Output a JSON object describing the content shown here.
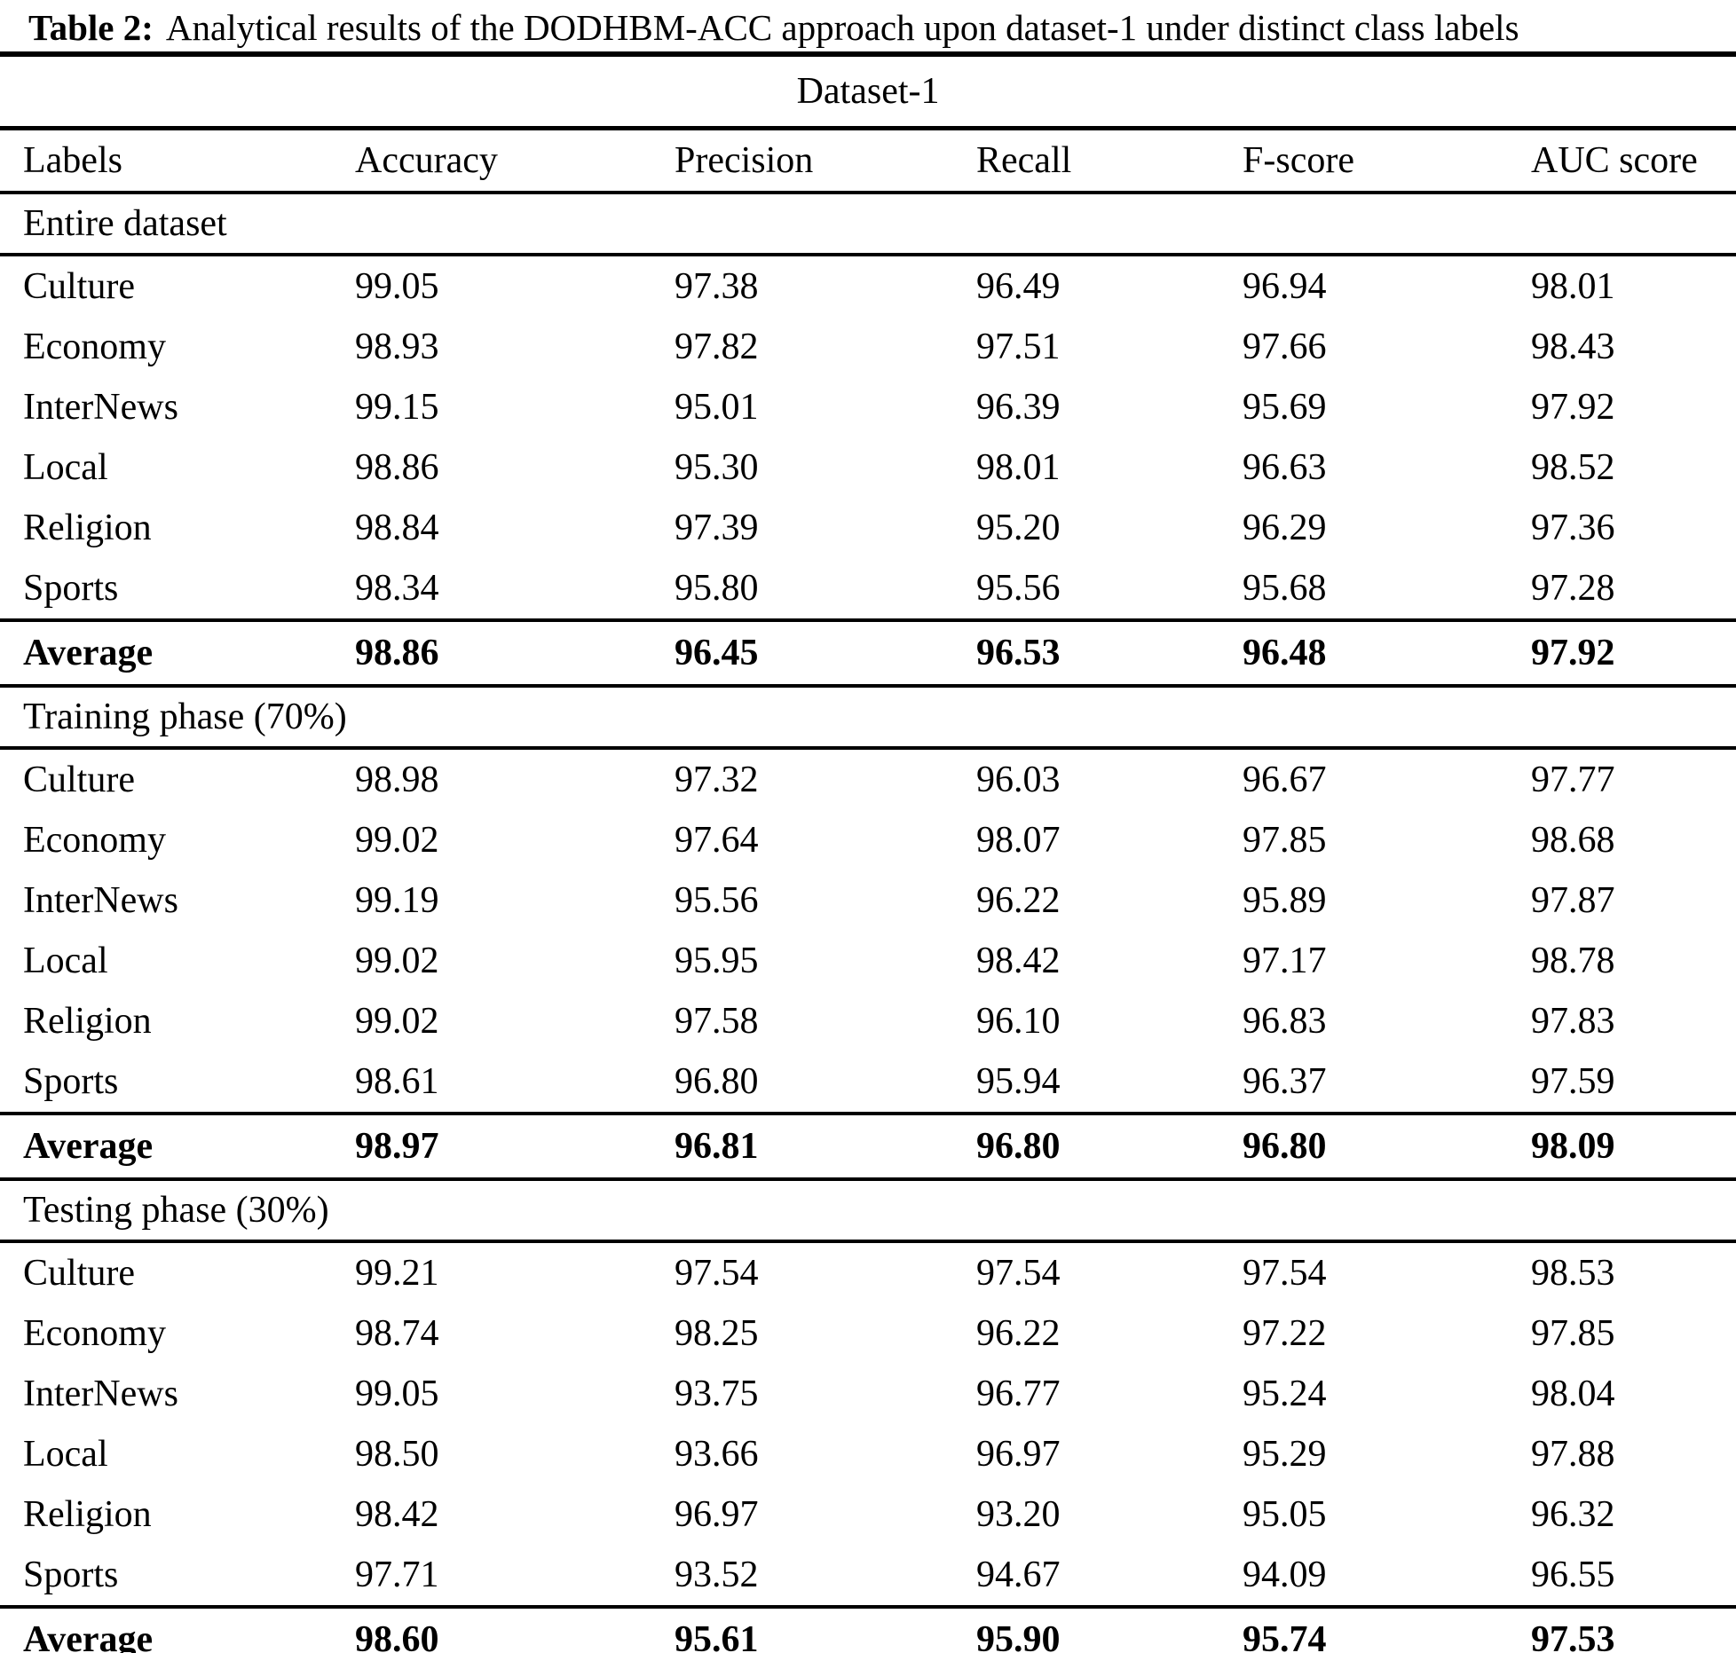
{
  "title": {
    "label": "Table 2:",
    "text": "Analytical results of the DODHBM-ACC approach upon dataset-1 under distinct class labels"
  },
  "table": {
    "dataset_header": "Dataset-1",
    "columns": [
      "Labels",
      "Accuracy",
      "Precision",
      "Recall",
      "F-score",
      "AUC score"
    ],
    "sections": [
      {
        "name": "Entire dataset",
        "rows": [
          {
            "label": "Culture",
            "values": [
              "99.05",
              "97.38",
              "96.49",
              "96.94",
              "98.01"
            ]
          },
          {
            "label": "Economy",
            "values": [
              "98.93",
              "97.82",
              "97.51",
              "97.66",
              "98.43"
            ]
          },
          {
            "label": "InterNews",
            "values": [
              "99.15",
              "95.01",
              "96.39",
              "95.69",
              "97.92"
            ]
          },
          {
            "label": "Local",
            "values": [
              "98.86",
              "95.30",
              "98.01",
              "96.63",
              "98.52"
            ]
          },
          {
            "label": "Religion",
            "values": [
              "98.84",
              "97.39",
              "95.20",
              "96.29",
              "97.36"
            ]
          },
          {
            "label": "Sports",
            "values": [
              "98.34",
              "95.80",
              "95.56",
              "95.68",
              "97.28"
            ]
          }
        ],
        "average": {
          "label": "Average",
          "values": [
            "98.86",
            "96.45",
            "96.53",
            "96.48",
            "97.92"
          ]
        }
      },
      {
        "name": "Training phase (70%)",
        "rows": [
          {
            "label": "Culture",
            "values": [
              "98.98",
              "97.32",
              "96.03",
              "96.67",
              "97.77"
            ]
          },
          {
            "label": "Economy",
            "values": [
              "99.02",
              "97.64",
              "98.07",
              "97.85",
              "98.68"
            ]
          },
          {
            "label": "InterNews",
            "values": [
              "99.19",
              "95.56",
              "96.22",
              "95.89",
              "97.87"
            ]
          },
          {
            "label": "Local",
            "values": [
              "99.02",
              "95.95",
              "98.42",
              "97.17",
              "98.78"
            ]
          },
          {
            "label": "Religion",
            "values": [
              "99.02",
              "97.58",
              "96.10",
              "96.83",
              "97.83"
            ]
          },
          {
            "label": "Sports",
            "values": [
              "98.61",
              "96.80",
              "95.94",
              "96.37",
              "97.59"
            ]
          }
        ],
        "average": {
          "label": "Average",
          "values": [
            "98.97",
            "96.81",
            "96.80",
            "96.80",
            "98.09"
          ]
        }
      },
      {
        "name": "Testing phase (30%)",
        "rows": [
          {
            "label": "Culture",
            "values": [
              "99.21",
              "97.54",
              "97.54",
              "97.54",
              "98.53"
            ]
          },
          {
            "label": "Economy",
            "values": [
              "98.74",
              "98.25",
              "96.22",
              "97.22",
              "97.85"
            ]
          },
          {
            "label": "InterNews",
            "values": [
              "99.05",
              "93.75",
              "96.77",
              "95.24",
              "98.04"
            ]
          },
          {
            "label": "Local",
            "values": [
              "98.50",
              "93.66",
              "96.97",
              "95.29",
              "97.88"
            ]
          },
          {
            "label": "Religion",
            "values": [
              "98.42",
              "96.97",
              "93.20",
              "95.05",
              "96.32"
            ]
          },
          {
            "label": "Sports",
            "values": [
              "97.71",
              "93.52",
              "94.67",
              "94.09",
              "96.55"
            ]
          }
        ],
        "average": {
          "label": "Average",
          "values": [
            "98.60",
            "95.61",
            "95.90",
            "95.74",
            "97.53"
          ]
        }
      }
    ]
  }
}
